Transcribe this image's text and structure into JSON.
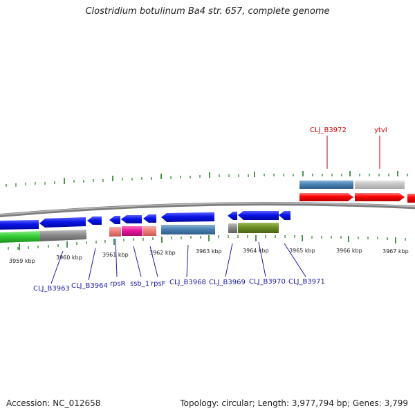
{
  "title": "Clostridium botulinum Ba4 str. 657, complete genome",
  "footer": {
    "accession_label": "Accession:",
    "accession": "NC_012658",
    "topology_label": "Topology:",
    "topology": "circular",
    "length_label": "Length:",
    "length": "3,977,794 bp",
    "genes_label": "Genes:",
    "genes": "3,799",
    "left_text": "Accession: NC_012658",
    "right_text": "Topology: circular; Length: 3,977,794 bp; Genes: 3,799"
  },
  "scale_labels": [
    "3959 kbp",
    "3960 kbp",
    "3961 kbp",
    "3962 kbp",
    "3963 kbp",
    "3964 kbp",
    "3965 kbp",
    "3966 kbp",
    "3967 kbp"
  ],
  "genes_bottom": [
    "CLJ_B3963",
    "CLJ_B3964",
    "rpsR",
    "ssb_1",
    "rpsF",
    "CLJ_B3968",
    "CLJ_B3969",
    "CLJ_B3970",
    "CLJ_B3971"
  ],
  "genes_top": [
    "CLJ_B3972",
    "ytvI"
  ],
  "colors": {
    "blue_cds": "#0a14e6",
    "red_cds": "#ff0000",
    "steel_blue": "#4a82b4",
    "gray": "#9a9a9a",
    "light_gray": "#c8c8c8",
    "salmon": "#ee8079",
    "magenta": "#e8169a",
    "olive": "#6b8e23",
    "green": "#33cc33",
    "tick_green": "#1f7a1f",
    "bottom_label": "#1a1aa8",
    "top_label": "#cc0000",
    "backbone": "#8c8c8c"
  }
}
